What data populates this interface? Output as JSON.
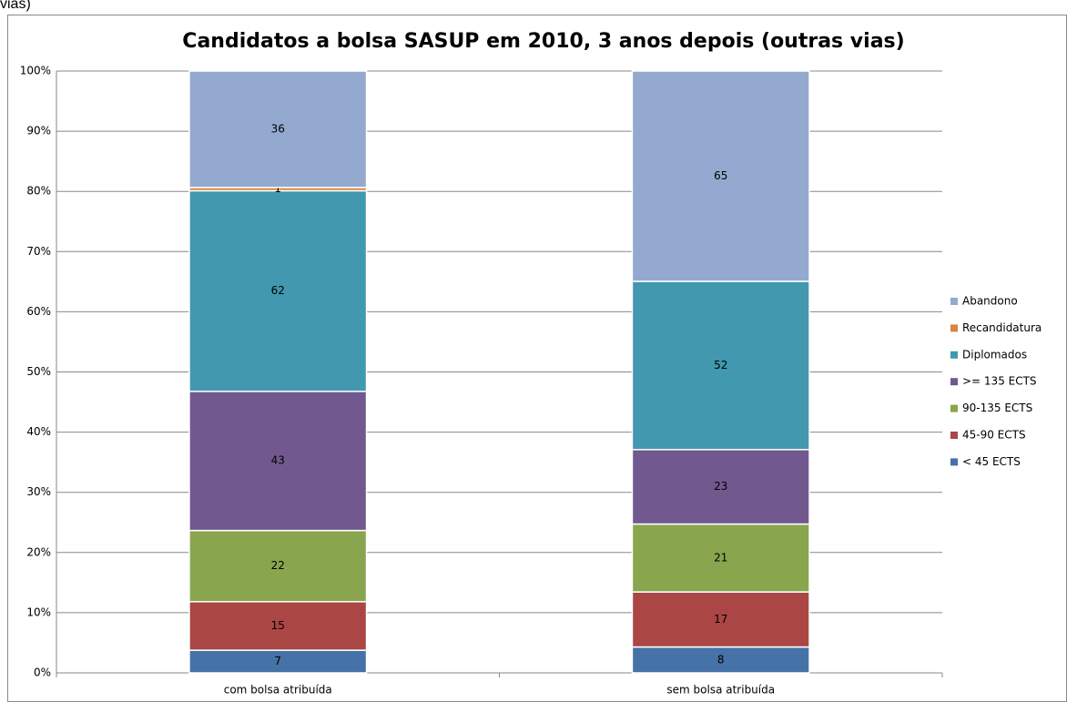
{
  "caption": "vias)",
  "chart_data": {
    "type": "bar",
    "stacking": "percent",
    "title": "Candidatos a bolsa SASUP em 2010, 3 anos depois (outras vias)",
    "categories": [
      "com bolsa atribuída",
      "sem bolsa atribuída"
    ],
    "series": [
      {
        "name": "< 45 ECTS",
        "color": "#4572a7",
        "values": [
          7,
          8
        ]
      },
      {
        "name": "45-90 ECTS",
        "color": "#aa4643",
        "values": [
          15,
          17
        ]
      },
      {
        "name": "90-135 ECTS",
        "color": "#89a54e",
        "values": [
          22,
          21
        ]
      },
      {
        "name": ">= 135 ECTS",
        "color": "#71588f",
        "values": [
          43,
          23
        ]
      },
      {
        "name": "Diplomados",
        "color": "#4198af",
        "values": [
          62,
          52
        ]
      },
      {
        "name": "Recandidatura",
        "color": "#db843d",
        "values": [
          1,
          null
        ]
      },
      {
        "name": "Abandono",
        "color": "#93a9cf",
        "values": [
          36,
          65
        ]
      }
    ],
    "ylim": [
      0,
      100
    ],
    "yticks": [
      {
        "value": 0,
        "label": "0%"
      },
      {
        "value": 10,
        "label": "10%"
      },
      {
        "value": 20,
        "label": "20%"
      },
      {
        "value": 30,
        "label": "30%"
      },
      {
        "value": 40,
        "label": "40%"
      },
      {
        "value": 50,
        "label": "50%"
      },
      {
        "value": 60,
        "label": "60%"
      },
      {
        "value": 70,
        "label": "70%"
      },
      {
        "value": 80,
        "label": "80%"
      },
      {
        "value": 90,
        "label": "90%"
      },
      {
        "value": 100,
        "label": "100%"
      }
    ],
    "grid": true,
    "legend": "right"
  }
}
